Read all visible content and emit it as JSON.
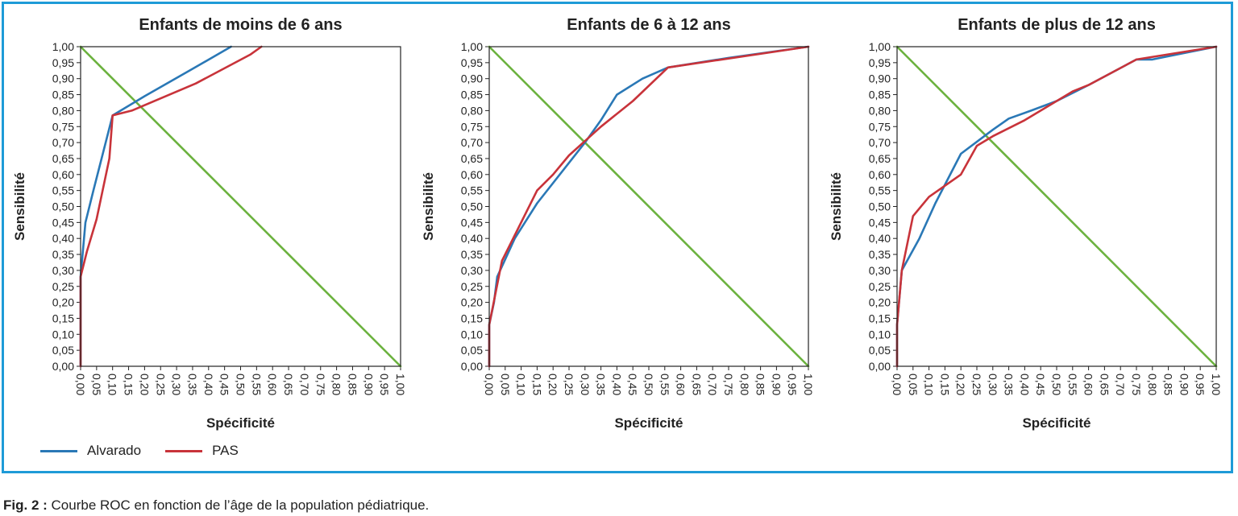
{
  "colors": {
    "frame": "#1e9bd7",
    "alvarado": "#2a78b6",
    "pas": "#c8333a",
    "diagonal": "#6cb23f"
  },
  "legend": [
    {
      "label": "Alvarado",
      "color": "#2a78b6"
    },
    {
      "label": "PAS",
      "color": "#c8333a"
    }
  ],
  "caption": {
    "label": "Fig. 2 :",
    "text": "Courbe ROC en fonction de l’âge de la population pédiatrique."
  },
  "chart_data": [
    {
      "type": "line",
      "title": "Enfants de moins de 6 ans",
      "xlabel": "Spécificité",
      "ylabel": "Sensibilité",
      "xlim": [
        0,
        1
      ],
      "ylim": [
        0,
        1
      ],
      "x_ticks": [
        "0,00",
        "0,05",
        "0,10",
        "0,15",
        "0,20",
        "0,25",
        "0,30",
        "0,35",
        "0,40",
        "0,45",
        "0,50",
        "0,55",
        "0,60",
        "0,65",
        "0,70",
        "0,75",
        "0,80",
        "0,85",
        "0,90",
        "0,95",
        "1,00"
      ],
      "y_ticks": [
        "0,00",
        "0,05",
        "0,10",
        "0,15",
        "0,20",
        "0,25",
        "0,30",
        "0,35",
        "0,40",
        "0,45",
        "0,50",
        "0,55",
        "0,60",
        "0,65",
        "0,70",
        "0,75",
        "0,80",
        "0,85",
        "0,90",
        "0,95",
        "1,00"
      ],
      "series": [
        {
          "name": "Alvarado",
          "points": [
            [
              0,
              0
            ],
            [
              0,
              0.28
            ],
            [
              0.015,
              0.45
            ],
            [
              0.04,
              0.55
            ],
            [
              0.1,
              0.785
            ],
            [
              0.2,
              0.845
            ],
            [
              0.34,
              0.925
            ],
            [
              0.47,
              1.0
            ]
          ]
        },
        {
          "name": "PAS",
          "points": [
            [
              0,
              0
            ],
            [
              0,
              0.28
            ],
            [
              0.02,
              0.36
            ],
            [
              0.05,
              0.46
            ],
            [
              0.09,
              0.65
            ],
            [
              0.1,
              0.785
            ],
            [
              0.16,
              0.8
            ],
            [
              0.36,
              0.885
            ],
            [
              0.53,
              0.975
            ],
            [
              0.565,
              1.0
            ]
          ]
        },
        {
          "name": "",
          "points": [
            [
              0,
              1
            ],
            [
              1,
              0
            ]
          ]
        }
      ]
    },
    {
      "type": "line",
      "title": "Enfants de 6 à 12 ans",
      "xlabel": "Spécificité",
      "ylabel": "Sensibilité",
      "xlim": [
        0,
        1
      ],
      "ylim": [
        0,
        1
      ],
      "x_ticks": [
        "0,00",
        "0,05",
        "0,10",
        "0,15",
        "0,20",
        "0,25",
        "0,30",
        "0,35",
        "0,40",
        "0,45",
        "0,50",
        "0,55",
        "0,60",
        "0,65",
        "0,70",
        "0,75",
        "0,80",
        "0,85",
        "0,90",
        "0,95",
        "1,00"
      ],
      "y_ticks": [
        "0,00",
        "0,05",
        "0,10",
        "0,15",
        "0,20",
        "0,25",
        "0,30",
        "0,35",
        "0,40",
        "0,45",
        "0,50",
        "0,55",
        "0,60",
        "0,65",
        "0,70",
        "0,75",
        "0,80",
        "0,85",
        "0,90",
        "0,95",
        "1,00"
      ],
      "series": [
        {
          "name": "Alvarado",
          "points": [
            [
              0,
              0
            ],
            [
              0,
              0.13
            ],
            [
              0.015,
              0.2
            ],
            [
              0.025,
              0.28
            ],
            [
              0.08,
              0.4
            ],
            [
              0.15,
              0.51
            ],
            [
              0.3,
              0.7
            ],
            [
              0.35,
              0.77
            ],
            [
              0.4,
              0.85
            ],
            [
              0.48,
              0.9
            ],
            [
              0.56,
              0.935
            ],
            [
              0.75,
              0.965
            ],
            [
              1.0,
              1.0
            ]
          ]
        },
        {
          "name": "PAS",
          "points": [
            [
              0,
              0
            ],
            [
              0,
              0.13
            ],
            [
              0.04,
              0.33
            ],
            [
              0.15,
              0.55
            ],
            [
              0.2,
              0.6
            ],
            [
              0.25,
              0.66
            ],
            [
              0.35,
              0.75
            ],
            [
              0.45,
              0.83
            ],
            [
              0.56,
              0.935
            ],
            [
              1.0,
              1.0
            ]
          ]
        },
        {
          "name": "",
          "points": [
            [
              0,
              1
            ],
            [
              1,
              0
            ]
          ]
        }
      ]
    },
    {
      "type": "line",
      "title": "Enfants de plus de 12 ans",
      "xlabel": "Spécificité",
      "ylabel": "Sensibilité",
      "xlim": [
        0,
        1
      ],
      "ylim": [
        0,
        1
      ],
      "x_ticks": [
        "0,00",
        "0,05",
        "0,10",
        "0,15",
        "0,20",
        "0,25",
        "0,30",
        "0,35",
        "0,40",
        "0,45",
        "0,50",
        "0,55",
        "0,60",
        "0,65",
        "0,70",
        "0,75",
        "0,80",
        "0,85",
        "0,90",
        "0,95",
        "1,00"
      ],
      "y_ticks": [
        "0,00",
        "0,05",
        "0,10",
        "0,15",
        "0,20",
        "0,25",
        "0,30",
        "0,35",
        "0,40",
        "0,45",
        "0,50",
        "0,55",
        "0,60",
        "0,65",
        "0,70",
        "0,75",
        "0,80",
        "0,85",
        "0,90",
        "0,95",
        "1,00"
      ],
      "series": [
        {
          "name": "Alvarado",
          "points": [
            [
              0,
              0
            ],
            [
              0,
              0.13
            ],
            [
              0.015,
              0.3
            ],
            [
              0.07,
              0.4
            ],
            [
              0.12,
              0.51
            ],
            [
              0.2,
              0.665
            ],
            [
              0.3,
              0.74
            ],
            [
              0.35,
              0.775
            ],
            [
              0.42,
              0.8
            ],
            [
              0.5,
              0.83
            ],
            [
              0.6,
              0.88
            ],
            [
              0.75,
              0.96
            ],
            [
              0.8,
              0.96
            ],
            [
              0.9,
              0.98
            ],
            [
              1.0,
              1.0
            ]
          ]
        },
        {
          "name": "PAS",
          "points": [
            [
              0,
              0
            ],
            [
              0,
              0.13
            ],
            [
              0.015,
              0.3
            ],
            [
              0.05,
              0.47
            ],
            [
              0.1,
              0.53
            ],
            [
              0.2,
              0.6
            ],
            [
              0.25,
              0.69
            ],
            [
              0.3,
              0.72
            ],
            [
              0.4,
              0.77
            ],
            [
              0.55,
              0.86
            ],
            [
              0.6,
              0.88
            ],
            [
              0.75,
              0.96
            ],
            [
              1.0,
              1.0
            ]
          ]
        },
        {
          "name": "",
          "points": [
            [
              0,
              1
            ],
            [
              1,
              0
            ]
          ]
        }
      ]
    }
  ]
}
